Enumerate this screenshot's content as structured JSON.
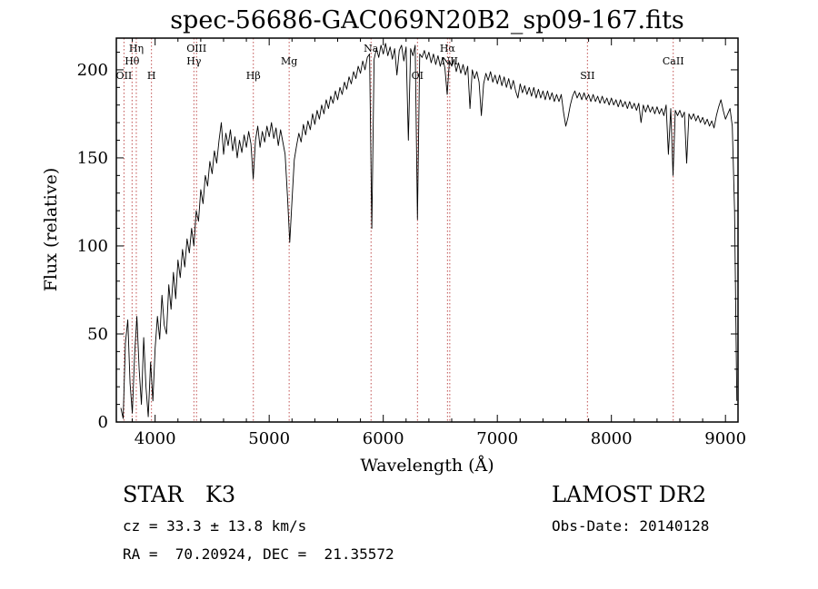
{
  "title": "spec-56686-GAC069N20B2_sp09-167.fits",
  "colors": {
    "spectrum": "#000000",
    "frame": "#000000",
    "marker_line": "#c05050",
    "marker_label": "#7a1f1f"
  },
  "footer": {
    "object_class": "STAR",
    "subclass": "K3",
    "cz": "cz = 33.3 ± 13.8 km/s",
    "ra_dec": "RA =  70.20924, DEC =  21.35572",
    "survey": "LAMOST DR2",
    "obs_date": "Obs-Date: 20140128"
  },
  "chart_data": {
    "type": "line",
    "title": "spec-56686-GAC069N20B2_sp09-167.fits",
    "xlabel": "Wavelength (Å)",
    "ylabel": "Flux (relative)",
    "xlim": [
      3660,
      9110
    ],
    "ylim": [
      0,
      218
    ],
    "x_major_ticks": [
      4000,
      5000,
      6000,
      7000,
      8000,
      9000
    ],
    "x_minor_step": 200,
    "y_major_ticks": [
      0,
      50,
      100,
      150,
      200
    ],
    "y_minor_step": 10,
    "grid": false,
    "legend": false,
    "x_start": 3700,
    "x_step": 20,
    "flux": [
      8,
      2,
      45,
      58,
      22,
      5,
      38,
      60,
      30,
      10,
      48,
      20,
      3,
      34,
      12,
      42,
      60,
      47,
      72,
      55,
      50,
      78,
      64,
      85,
      70,
      92,
      82,
      98,
      88,
      104,
      96,
      110,
      100,
      120,
      114,
      132,
      124,
      140,
      134,
      148,
      141,
      154,
      147,
      160,
      170,
      152,
      164,
      157,
      166,
      154,
      162,
      150,
      160,
      153,
      163,
      156,
      165,
      158,
      138,
      160,
      168,
      156,
      165,
      159,
      168,
      162,
      170,
      161,
      167,
      157,
      166,
      159,
      152,
      128,
      102,
      126,
      149,
      157,
      164,
      159,
      169,
      163,
      171,
      166,
      175,
      169,
      177,
      172,
      180,
      175,
      183,
      178,
      185,
      181,
      188,
      183,
      190,
      186,
      193,
      189,
      196,
      192,
      199,
      195,
      202,
      198,
      205,
      200,
      207,
      209,
      110,
      206,
      212,
      207,
      214,
      209,
      215,
      208,
      213,
      206,
      212,
      197,
      211,
      214,
      205,
      213,
      160,
      212,
      208,
      214,
      115,
      209,
      207,
      211,
      206,
      210,
      204,
      209,
      203,
      208,
      202,
      207,
      201,
      186,
      205,
      202,
      206,
      199,
      204,
      198,
      203,
      197,
      202,
      178,
      200,
      195,
      199,
      193,
      174,
      192,
      198,
      194,
      199,
      193,
      197,
      192,
      197,
      191,
      196,
      190,
      195,
      189,
      194,
      188,
      184,
      192,
      187,
      191,
      186,
      190,
      185,
      190,
      184,
      189,
      184,
      188,
      183,
      188,
      183,
      187,
      182,
      186,
      182,
      186,
      176,
      168,
      173,
      180,
      185,
      188,
      184,
      187,
      183,
      187,
      183,
      186,
      182,
      186,
      182,
      185,
      181,
      185,
      181,
      184,
      180,
      184,
      180,
      183,
      179,
      183,
      179,
      182,
      178,
      182,
      178,
      181,
      177,
      181,
      170,
      180,
      176,
      180,
      176,
      179,
      175,
      179,
      175,
      178,
      174,
      180,
      152,
      178,
      140,
      177,
      174,
      177,
      173,
      176,
      147,
      175,
      172,
      175,
      171,
      174,
      170,
      173,
      169,
      172,
      168,
      171,
      167,
      174,
      179,
      183,
      177,
      172,
      175,
      178,
      168,
      120,
      12
    ],
    "line_markers": [
      {
        "label": "OII",
        "wavelength": 3727,
        "row": 2
      },
      {
        "label": "Hθ",
        "wavelength": 3798,
        "row": 1
      },
      {
        "label": "Hη",
        "wavelength": 3835,
        "row": 0
      },
      {
        "label": "H",
        "wavelength": 3968,
        "row": 2
      },
      {
        "label": "Hγ",
        "wavelength": 4340,
        "row": 1
      },
      {
        "label": "OIII",
        "wavelength": 4363,
        "row": 0
      },
      {
        "label": "Hβ",
        "wavelength": 4861,
        "row": 2
      },
      {
        "label": "Mg",
        "wavelength": 5175,
        "row": 1
      },
      {
        "label": "Na",
        "wavelength": 5893,
        "row": 0
      },
      {
        "label": "OI",
        "wavelength": 6300,
        "row": 2
      },
      {
        "label": "Hα",
        "wavelength": 6563,
        "row": 0
      },
      {
        "label": "NII",
        "wavelength": 6583,
        "row": 1
      },
      {
        "label": "SII",
        "wavelength": 7790,
        "row": 2
      },
      {
        "label": "CaII",
        "wavelength": 8542,
        "row": 1
      }
    ]
  }
}
